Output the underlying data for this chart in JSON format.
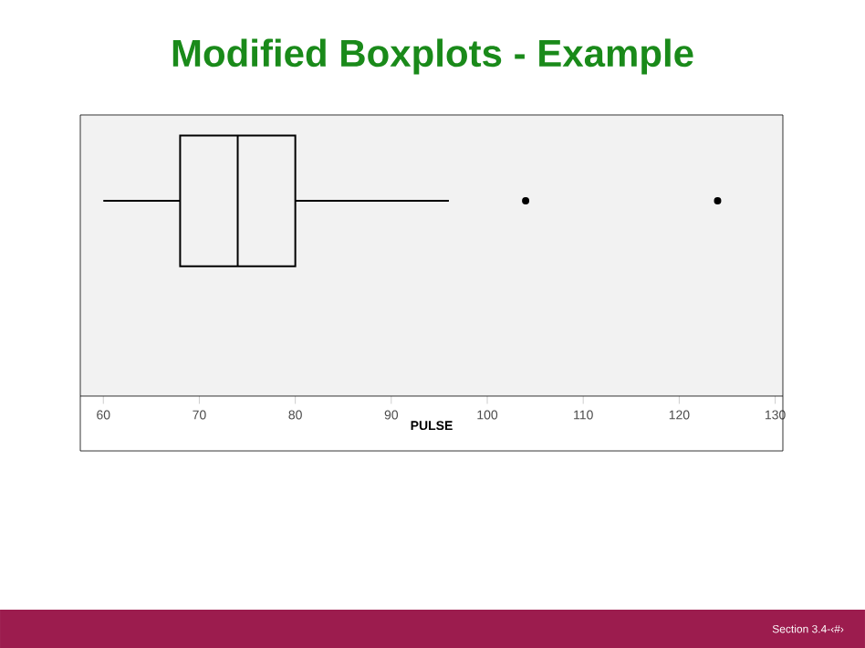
{
  "chart_data": {
    "type": "box",
    "title": "Modified Boxplots - Example",
    "xlabel": "PULSE",
    "orientation": "horizontal",
    "categories": [
      null
    ],
    "boxes": [
      {
        "low": 60,
        "q1": 68,
        "median": 74,
        "q3": 80,
        "high": 96,
        "outliers": [
          104,
          124
        ]
      }
    ],
    "xlim": [
      57.6,
      130.8
    ],
    "xticks": [
      60,
      70,
      80,
      90,
      100,
      110,
      120,
      130
    ],
    "annotations": [
      "Section 3.4-‹#›"
    ]
  }
}
